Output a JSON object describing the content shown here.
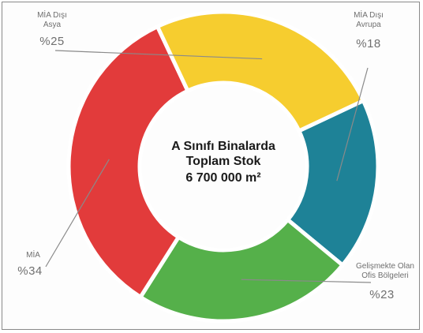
{
  "chart_data": {
    "type": "pie",
    "variant": "donut",
    "center_text": [
      "A Sınıfı Binalarda",
      "Toplam Stok",
      "6 700 000 m²"
    ],
    "slices": [
      {
        "label_lines": [
          "MİA Dışı",
          "Avrupa"
        ],
        "pct_label": "%18",
        "value": 18,
        "color": "#1e8297"
      },
      {
        "label_lines": [
          "Gelişmekte Olan",
          "Ofis Bölgeleri"
        ],
        "pct_label": "%23",
        "value": 23,
        "color": "#55b04a"
      },
      {
        "label_lines": [
          "MİA"
        ],
        "pct_label": "%34",
        "value": 34,
        "color": "#e23b3b"
      },
      {
        "label_lines": [
          "MİA Dışı",
          "Asya"
        ],
        "pct_label": "%25",
        "value": 25,
        "color": "#f6cd2f"
      }
    ]
  }
}
